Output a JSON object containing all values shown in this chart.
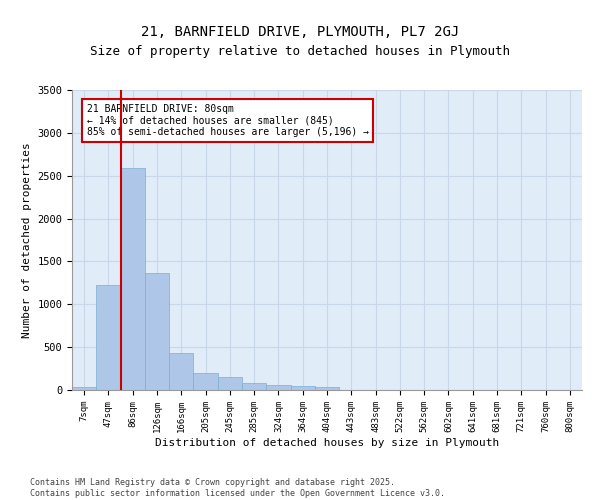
{
  "title": "21, BARNFIELD DRIVE, PLYMOUTH, PL7 2GJ",
  "subtitle": "Size of property relative to detached houses in Plymouth",
  "xlabel": "Distribution of detached houses by size in Plymouth",
  "ylabel": "Number of detached properties",
  "categories": [
    "7sqm",
    "47sqm",
    "86sqm",
    "126sqm",
    "166sqm",
    "205sqm",
    "245sqm",
    "285sqm",
    "324sqm",
    "364sqm",
    "404sqm",
    "443sqm",
    "483sqm",
    "522sqm",
    "562sqm",
    "602sqm",
    "641sqm",
    "681sqm",
    "721sqm",
    "760sqm",
    "800sqm"
  ],
  "values": [
    30,
    1220,
    2590,
    1360,
    430,
    195,
    155,
    85,
    55,
    50,
    30,
    5,
    0,
    0,
    0,
    0,
    0,
    0,
    0,
    0,
    0
  ],
  "bar_color": "#aec6e8",
  "bar_edge_color": "#7aaed4",
  "vline_x": 1.5,
  "vline_color": "#cc0000",
  "ylim": [
    0,
    3500
  ],
  "yticks": [
    0,
    500,
    1000,
    1500,
    2000,
    2500,
    3000,
    3500
  ],
  "grid_color": "#c8d8e8",
  "bg_color": "#e0ecf8",
  "annotation_text": "21 BARNFIELD DRIVE: 80sqm\n← 14% of detached houses are smaller (845)\n85% of semi-detached houses are larger (5,196) →",
  "annotation_box_color": "#cc0000",
  "footer_line1": "Contains HM Land Registry data © Crown copyright and database right 2025.",
  "footer_line2": "Contains public sector information licensed under the Open Government Licence v3.0."
}
